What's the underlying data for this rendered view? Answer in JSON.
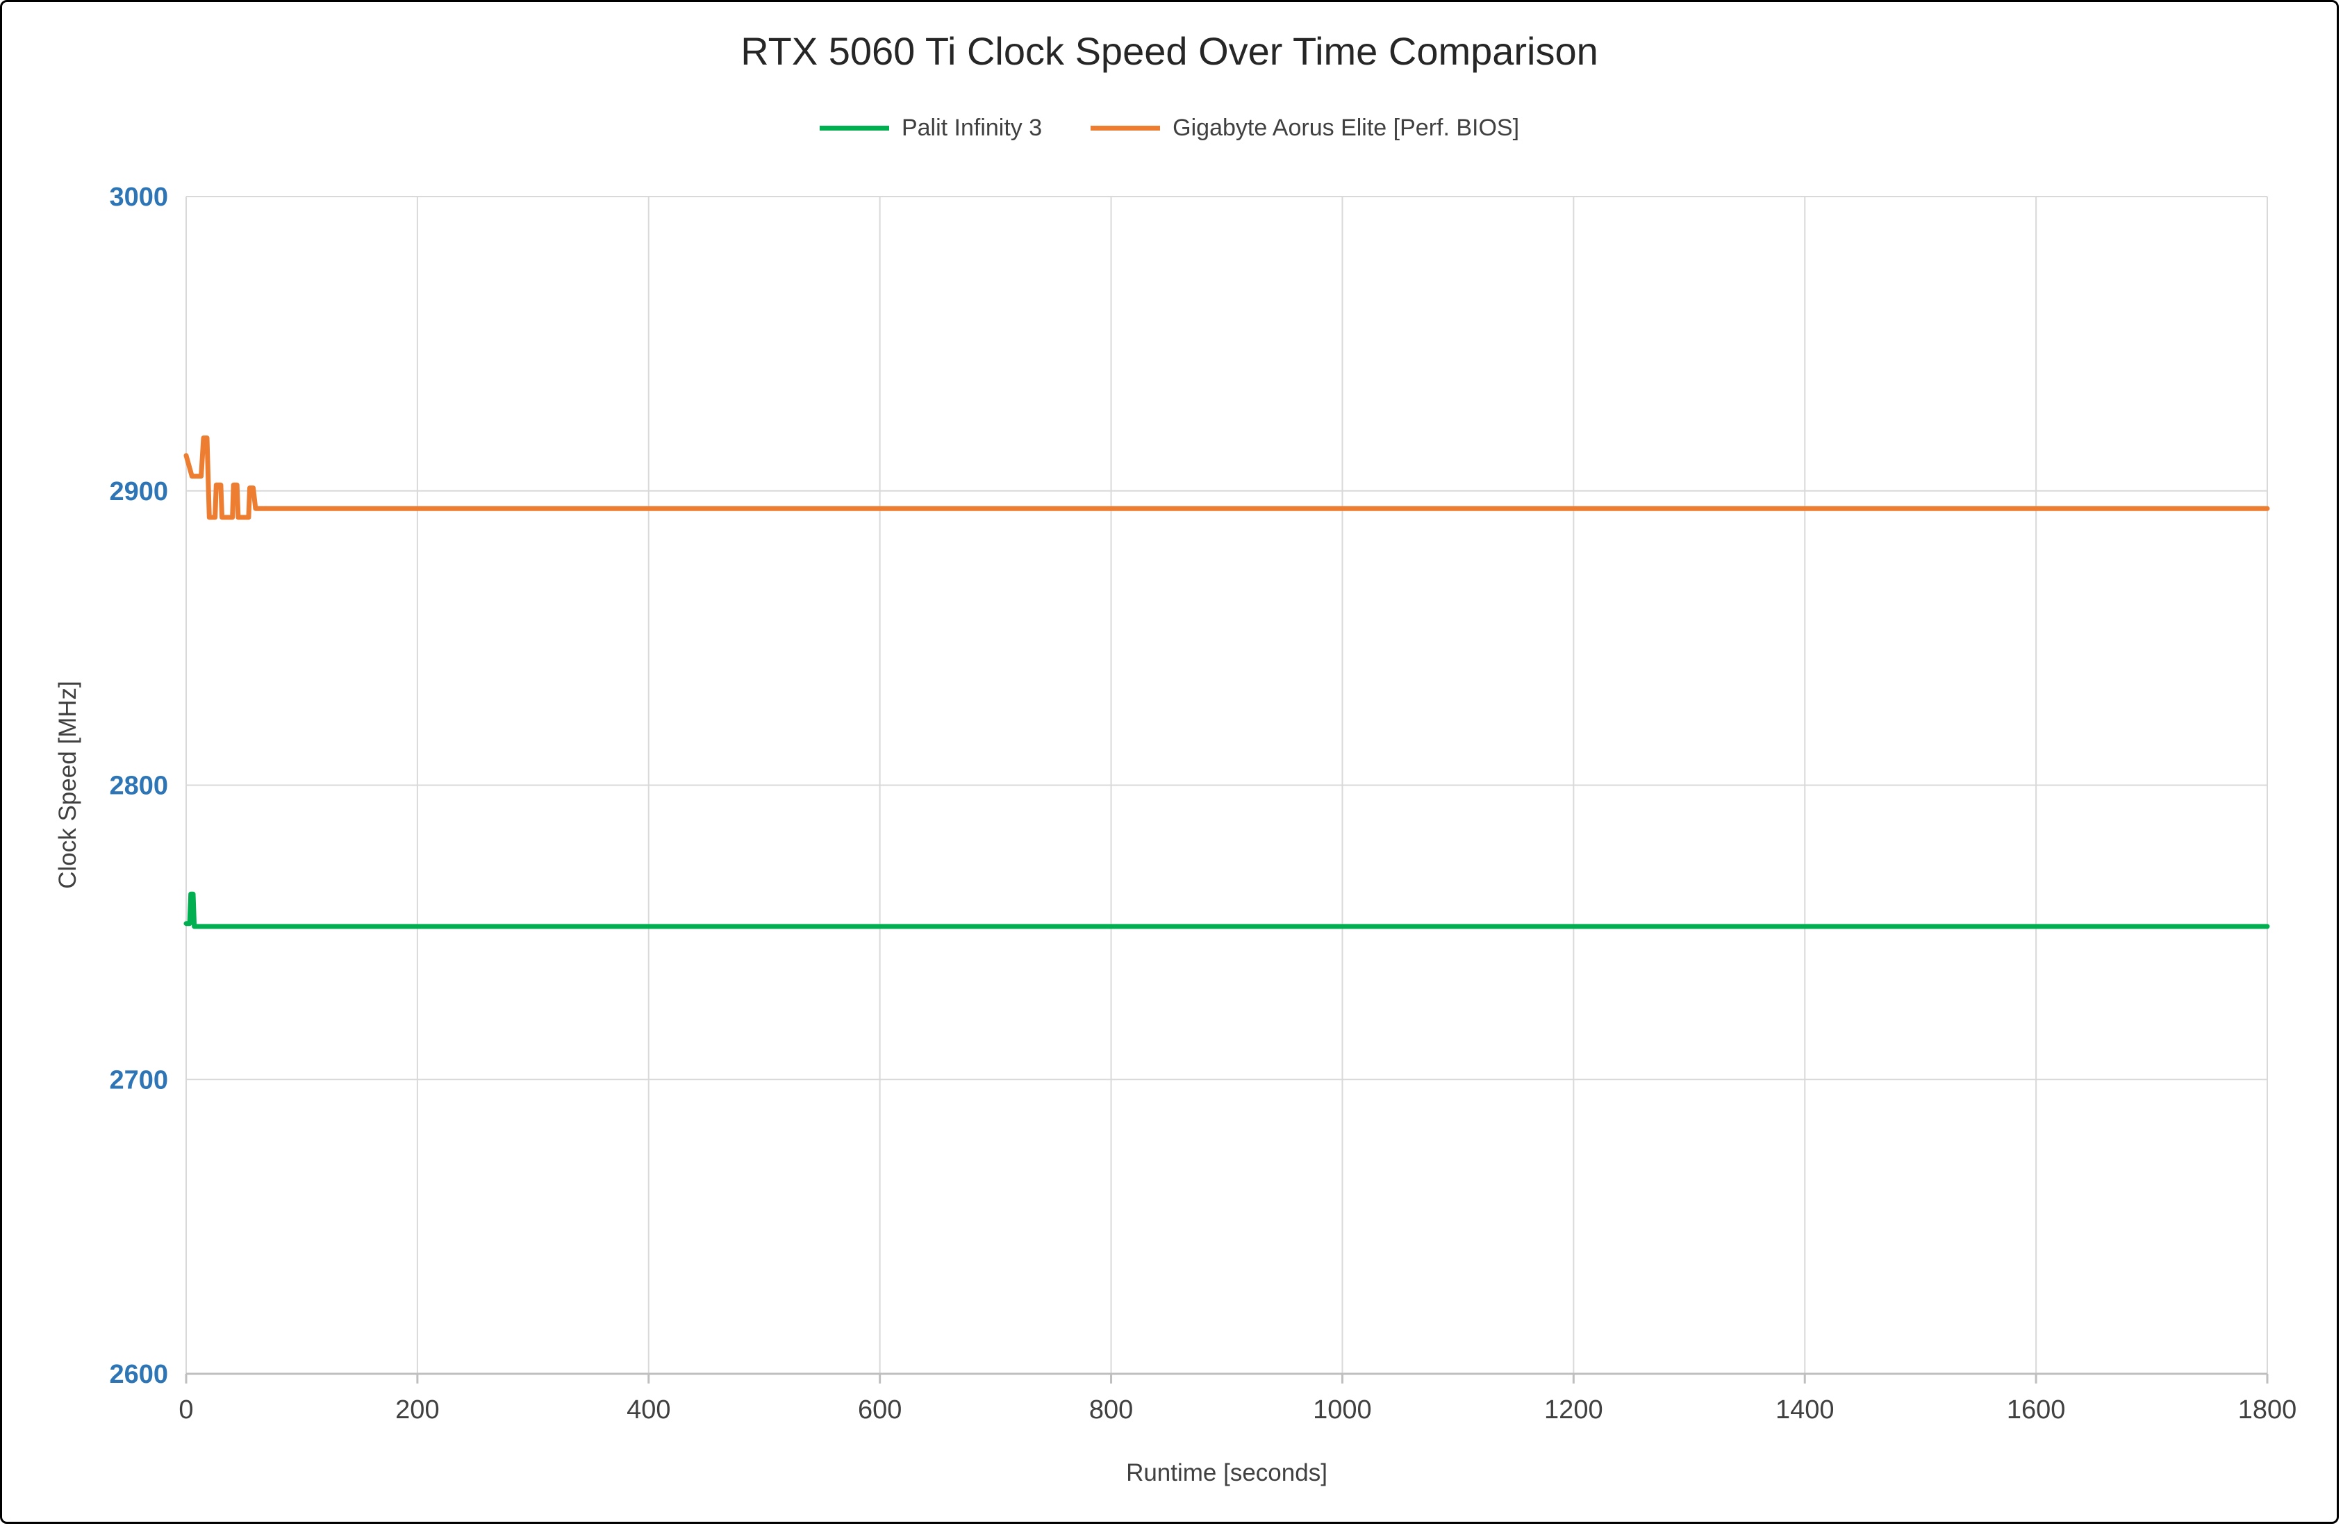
{
  "chart_data": {
    "type": "line",
    "title": "RTX 5060 Ti Clock Speed Over Time Comparison",
    "xlabel": "Runtime [seconds]",
    "ylabel": "Clock Speed [MHz]",
    "xlim": [
      0,
      1800
    ],
    "ylim": [
      2600,
      3000
    ],
    "xticks": [
      0,
      200,
      400,
      600,
      800,
      1000,
      1200,
      1400,
      1600,
      1800
    ],
    "yticks": [
      2600,
      2700,
      2800,
      2900,
      3000
    ],
    "grid": true,
    "legend_position": "top",
    "colors": {
      "grid": "#D9D9D9",
      "axis_line": "#BFBFBF",
      "y_tick_label": "#2E75B6",
      "x_tick_label": "#404040",
      "title": "#262626"
    },
    "series": [
      {
        "name": "Palit Infinity 3",
        "color": "#00B050",
        "points": [
          [
            0,
            2753
          ],
          [
            3,
            2753
          ],
          [
            4,
            2763
          ],
          [
            6,
            2763
          ],
          [
            7,
            2752
          ],
          [
            1800,
            2752
          ]
        ]
      },
      {
        "name": "Gigabyte Aorus Elite [Perf. BIOS]",
        "color": "#ED7D31",
        "points": [
          [
            0,
            2912
          ],
          [
            5,
            2905
          ],
          [
            13,
            2905
          ],
          [
            15,
            2918
          ],
          [
            18,
            2918
          ],
          [
            20,
            2891
          ],
          [
            25,
            2891
          ],
          [
            26,
            2902
          ],
          [
            30,
            2902
          ],
          [
            31,
            2891
          ],
          [
            40,
            2891
          ],
          [
            41,
            2902
          ],
          [
            44,
            2902
          ],
          [
            45,
            2891
          ],
          [
            54,
            2891
          ],
          [
            55,
            2901
          ],
          [
            58,
            2901
          ],
          [
            60,
            2894
          ],
          [
            1800,
            2894
          ]
        ]
      }
    ]
  }
}
